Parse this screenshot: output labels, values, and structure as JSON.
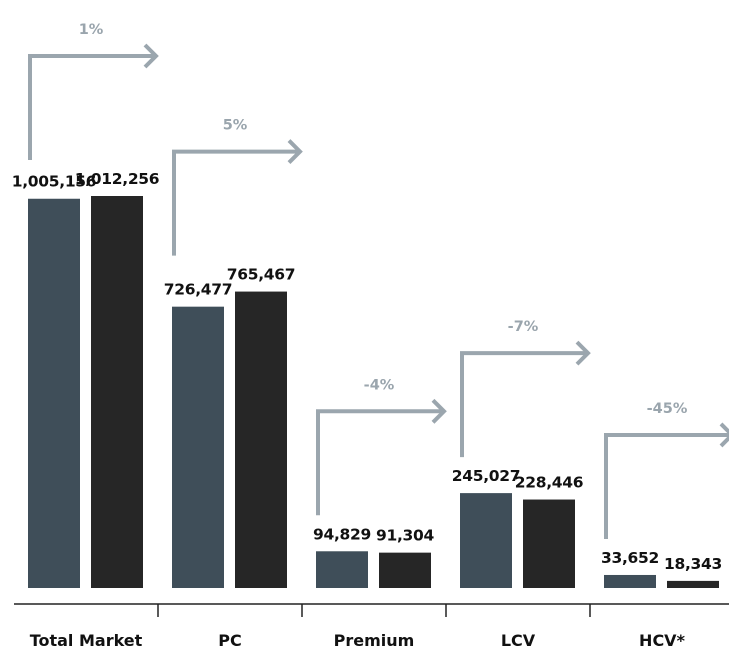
{
  "chart_data": {
    "type": "bar",
    "categories": [
      "Total Market",
      "PC",
      "Premium",
      "LCV",
      "HCV*"
    ],
    "series": [
      {
        "values": [
          1005156,
          726477,
          94829,
          245027,
          33652
        ]
      },
      {
        "values": [
          1012256,
          765467,
          91304,
          228446,
          18343
        ]
      }
    ],
    "value_labels": [
      [
        "1,005,156",
        "726,477",
        "94,829",
        "245,027",
        "33,652"
      ],
      [
        "1,012,256",
        "765,467",
        "91,304",
        "228,446",
        "18,343"
      ]
    ],
    "change_labels": [
      "1%",
      "5%",
      "-4%",
      "-7%",
      "-45%"
    ],
    "ylim": [
      0,
      1012256
    ],
    "grid": false,
    "legend": "none"
  },
  "colors": {
    "series_1": "#3f4e59",
    "series_2": "#262626",
    "arrow": "#9ba6ae",
    "axis": "#222222"
  }
}
